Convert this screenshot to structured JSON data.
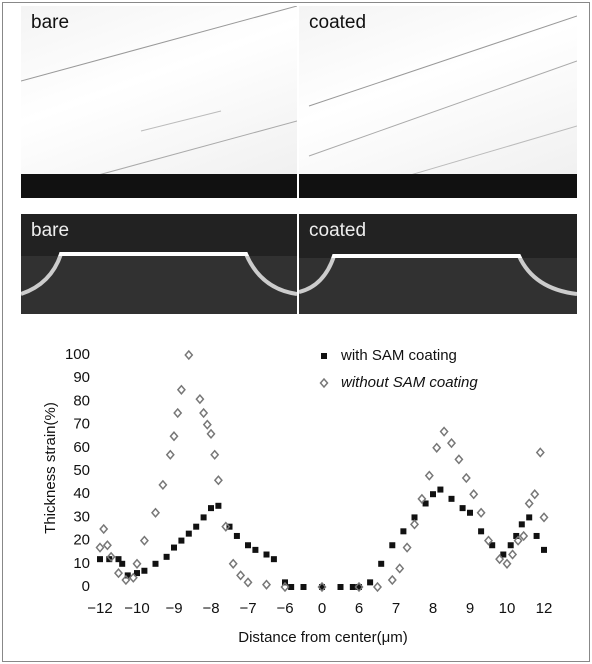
{
  "panels": [
    "bare",
    "coated",
    "bare",
    "coated"
  ],
  "chart_data": {
    "type": "scatter",
    "y_label": "Thickness strain(%)",
    "x_label": "Distance from center(μm)",
    "xlim": [
      -12,
      12
    ],
    "ylim": [
      0,
      100
    ],
    "xticks": [
      {
        "value": -12,
        "label": "−12"
      },
      {
        "value": -10,
        "label": "−10"
      },
      {
        "value": -9,
        "label": "−9"
      },
      {
        "value": -8,
        "label": "−8"
      },
      {
        "value": -7,
        "label": "−7"
      },
      {
        "value": -6,
        "label": "−6"
      },
      0,
      6,
      7,
      8,
      9,
      10,
      12
    ],
    "yticks": [
      0,
      10,
      20,
      30,
      40,
      50,
      60,
      70,
      80,
      90,
      100
    ],
    "series": [
      {
        "name": "with SAM coating",
        "color": "#111111",
        "marker": "square",
        "x": [
          -12,
          -11.5,
          -11,
          -10.8,
          -10.5,
          -10,
          -9.8,
          -9.5,
          -9.2,
          -9,
          -8.8,
          -8.6,
          -8.4,
          -8.2,
          -8,
          -7.8,
          -7.5,
          -7.3,
          -7,
          -6.8,
          -6.5,
          -6.3,
          -6,
          -5,
          -3,
          0,
          3,
          5,
          6,
          6.3,
          6.6,
          6.9,
          7.2,
          7.5,
          7.8,
          8,
          8.2,
          8.5,
          8.8,
          9,
          9.3,
          9.6,
          9.9,
          10.2,
          10.5,
          10.8,
          11.2,
          11.6,
          12
        ],
        "values": [
          12,
          12,
          12,
          10,
          5,
          6,
          7,
          10,
          13,
          17,
          20,
          23,
          26,
          30,
          34,
          35,
          26,
          22,
          18,
          16,
          14,
          12,
          2,
          0,
          0,
          0,
          0,
          0,
          0,
          2,
          10,
          18,
          24,
          30,
          36,
          40,
          42,
          38,
          34,
          32,
          24,
          18,
          14,
          18,
          22,
          27,
          30,
          22,
          16
        ]
      },
      {
        "name": "without SAM coating",
        "color": "#777777",
        "marker": "diamond",
        "x": [
          -12,
          -11.8,
          -11.6,
          -11.4,
          -11,
          -10.6,
          -10.2,
          -10,
          -9.8,
          -9.5,
          -9.3,
          -9.1,
          -9,
          -8.9,
          -8.8,
          -8.6,
          -8.3,
          -8.2,
          -8.1,
          -8,
          -7.9,
          -7.8,
          -7.6,
          -7.4,
          -7.2,
          -7,
          -6.5,
          -6,
          0,
          6,
          6.5,
          6.9,
          7.1,
          7.3,
          7.5,
          7.7,
          7.9,
          8.1,
          8.3,
          8.5,
          8.7,
          8.9,
          9.1,
          9.3,
          9.5,
          9.8,
          10,
          10.3,
          10.6,
          10.9,
          11.2,
          11.5,
          11.8,
          12
        ],
        "values": [
          17,
          25,
          18,
          13,
          6,
          3,
          4,
          10,
          20,
          32,
          44,
          57,
          65,
          75,
          85,
          100,
          81,
          75,
          70,
          66,
          57,
          46,
          26,
          10,
          5,
          2,
          1,
          0,
          0,
          0,
          0,
          3,
          8,
          17,
          27,
          38,
          48,
          60,
          67,
          62,
          55,
          47,
          40,
          32,
          20,
          12,
          10,
          14,
          20,
          22,
          36,
          40,
          58,
          30
        ]
      }
    ]
  }
}
